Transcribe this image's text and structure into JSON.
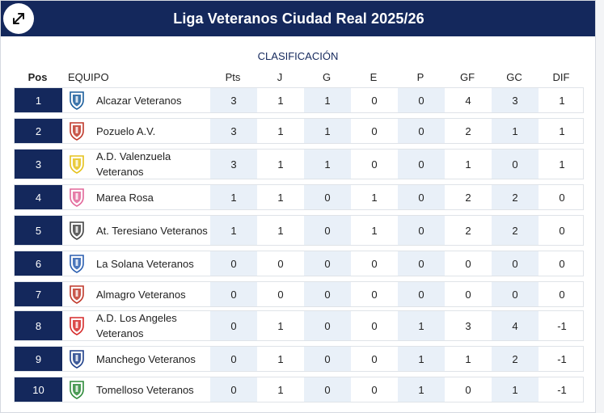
{
  "header": {
    "title": "Liga Veteranos Ciudad Real 2025/26"
  },
  "section_label": "CLASIFICACIÓN",
  "columns": {
    "pos": "Pos",
    "team": "EQUIPO",
    "pts": "Pts",
    "j": "J",
    "g": "G",
    "e": "E",
    "p": "P",
    "gf": "GF",
    "gc": "GC",
    "dif": "DIF"
  },
  "rows": [
    {
      "pos": "1",
      "team": "Alcazar Veteranos",
      "pts": "3",
      "j": "1",
      "g": "1",
      "e": "0",
      "p": "0",
      "gf": "4",
      "gc": "3",
      "dif": "1",
      "crest": "alcazar-crest-icon",
      "crest_color": "#1b5e9c"
    },
    {
      "pos": "2",
      "team": "Pozuelo A.V.",
      "pts": "3",
      "j": "1",
      "g": "1",
      "e": "0",
      "p": "0",
      "gf": "2",
      "gc": "1",
      "dif": "1",
      "crest": "pozuelo-crest-icon",
      "crest_color": "#c0392b"
    },
    {
      "pos": "3",
      "team": "A.D. Valenzuela Veteranos",
      "pts": "3",
      "j": "1",
      "g": "1",
      "e": "0",
      "p": "0",
      "gf": "1",
      "gc": "0",
      "dif": "1",
      "crest": "valenzuela-crest-icon",
      "crest_color": "#e5c21b"
    },
    {
      "pos": "4",
      "team": "Marea Rosa",
      "pts": "1",
      "j": "1",
      "g": "0",
      "e": "1",
      "p": "0",
      "gf": "2",
      "gc": "2",
      "dif": "0",
      "crest": "marea-rosa-crest-icon",
      "crest_color": "#e2679a"
    },
    {
      "pos": "5",
      "team": "At. Teresiano Veteranos",
      "pts": "1",
      "j": "1",
      "g": "0",
      "e": "1",
      "p": "0",
      "gf": "2",
      "gc": "2",
      "dif": "0",
      "crest": "teresiano-crest-icon",
      "crest_color": "#444444"
    },
    {
      "pos": "6",
      "team": "La Solana Veteranos",
      "pts": "0",
      "j": "0",
      "g": "0",
      "e": "0",
      "p": "0",
      "gf": "0",
      "gc": "0",
      "dif": "0",
      "crest": "la-solana-crest-icon",
      "crest_color": "#2b5fb0"
    },
    {
      "pos": "7",
      "team": "Almagro Veteranos",
      "pts": "0",
      "j": "0",
      "g": "0",
      "e": "0",
      "p": "0",
      "gf": "0",
      "gc": "0",
      "dif": "0",
      "crest": "almagro-crest-icon",
      "crest_color": "#c0392b"
    },
    {
      "pos": "8",
      "team": "A.D. Los Angeles Veteranos",
      "pts": "0",
      "j": "1",
      "g": "0",
      "e": "0",
      "p": "1",
      "gf": "3",
      "gc": "4",
      "dif": "-1",
      "crest": "los-angeles-crest-icon",
      "crest_color": "#d62b2b"
    },
    {
      "pos": "9",
      "team": "Manchego Veteranos",
      "pts": "0",
      "j": "1",
      "g": "0",
      "e": "0",
      "p": "1",
      "gf": "1",
      "gc": "2",
      "dif": "-1",
      "crest": "manchego-crest-icon",
      "crest_color": "#1e3f8a"
    },
    {
      "pos": "10",
      "team": "Tomelloso Veteranos",
      "pts": "0",
      "j": "1",
      "g": "0",
      "e": "0",
      "p": "1",
      "gf": "0",
      "gc": "1",
      "dif": "-1",
      "crest": "tomelloso-crest-icon",
      "crest_color": "#2e8b3a"
    }
  ],
  "colors": {
    "header_bg": "#14285c",
    "shade": "#e9f0f8"
  }
}
